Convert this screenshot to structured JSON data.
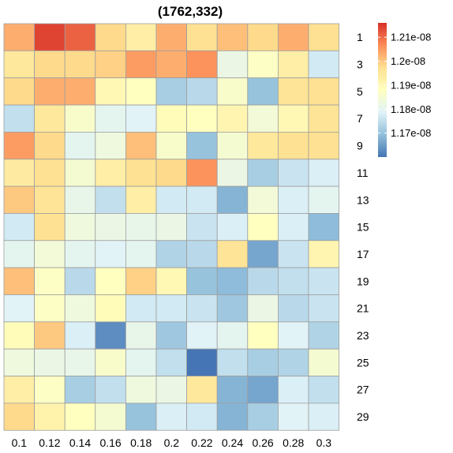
{
  "chart_data": {
    "type": "heatmap",
    "title": "(1762,332)",
    "x_labels": [
      "0.1",
      "0.12",
      "0.14",
      "0.16",
      "0.18",
      "0.2",
      "0.22",
      "0.24",
      "0.26",
      "0.28",
      "0.3"
    ],
    "y_labels": [
      "1",
      "",
      "3",
      "",
      "5",
      "",
      "7",
      "",
      "9",
      "",
      "11",
      "",
      "13",
      "",
      "15",
      "",
      "17",
      "",
      "19",
      "",
      "21",
      "",
      "23",
      "",
      "25",
      "",
      "27",
      "",
      "29"
    ],
    "y_tick_labels": [
      "1",
      "3",
      "5",
      "7",
      "9",
      "11",
      "13",
      "15",
      "17",
      "19",
      "21",
      "23",
      "25",
      "27",
      "29"
    ],
    "rows": [
      "1",
      "3",
      "5",
      "7",
      "9",
      "11",
      "13",
      "15",
      "17",
      "19",
      "21",
      "23",
      "25",
      "27",
      "29"
    ],
    "values": [
      [
        1.203e-08,
        1.214e-08,
        1.211e-08,
        1.198e-08,
        1.193e-08,
        1.203e-08,
        1.197e-08,
        1.201e-08,
        1.198e-08,
        1.203e-08,
        1.197e-08
      ],
      [
        1.195e-08,
        1.198e-08,
        1.198e-08,
        1.199e-08,
        1.205e-08,
        1.203e-08,
        1.206e-08,
        1.182e-08,
        1.187e-08,
        1.193e-08,
        1.177e-08
      ],
      [
        1.198e-08,
        1.203e-08,
        1.203e-08,
        1.19e-08,
        1.188e-08,
        1.172e-08,
        1.174e-08,
        1.186e-08,
        1.17e-08,
        1.196e-08,
        1.197e-08
      ],
      [
        1.175e-08,
        1.195e-08,
        1.186e-08,
        1.18e-08,
        1.179e-08,
        1.189e-08,
        1.188e-08,
        1.191e-08,
        1.184e-08,
        1.19e-08,
        1.196e-08
      ],
      [
        1.205e-08,
        1.198e-08,
        1.18e-08,
        1.183e-08,
        1.201e-08,
        1.186e-08,
        1.17e-08,
        1.185e-08,
        1.195e-08,
        1.197e-08,
        1.197e-08
      ],
      [
        1.194e-08,
        1.197e-08,
        1.185e-08,
        1.193e-08,
        1.197e-08,
        1.198e-08,
        1.206e-08,
        1.182e-08,
        1.172e-08,
        1.176e-08,
        1.178e-08
      ],
      [
        1.2e-08,
        1.196e-08,
        1.181e-08,
        1.175e-08,
        1.193e-08,
        1.177e-08,
        1.177e-08,
        1.168e-08,
        1.184e-08,
        1.178e-08,
        1.18e-08
      ],
      [
        1.177e-08,
        1.197e-08,
        1.183e-08,
        1.182e-08,
        1.181e-08,
        1.182e-08,
        1.176e-08,
        1.178e-08,
        1.188e-08,
        1.178e-08,
        1.169e-08
      ],
      [
        1.18e-08,
        1.184e-08,
        1.18e-08,
        1.179e-08,
        1.18e-08,
        1.173e-08,
        1.174e-08,
        1.196e-08,
        1.166e-08,
        1.176e-08,
        1.191e-08
      ],
      [
        1.201e-08,
        1.187e-08,
        1.174e-08,
        1.188e-08,
        1.199e-08,
        1.19e-08,
        1.17e-08,
        1.169e-08,
        1.174e-08,
        1.175e-08,
        1.176e-08
      ],
      [
        1.179e-08,
        1.187e-08,
        1.183e-08,
        1.189e-08,
        1.177e-08,
        1.177e-08,
        1.176e-08,
        1.171e-08,
        1.182e-08,
        1.174e-08,
        1.176e-08
      ],
      [
        1.189e-08,
        1.2e-08,
        1.178e-08,
        1.163e-08,
        1.181e-08,
        1.171e-08,
        1.179e-08,
        1.18e-08,
        1.188e-08,
        1.179e-08,
        1.173e-08
      ],
      [
        1.183e-08,
        1.182e-08,
        1.181e-08,
        1.186e-08,
        1.18e-08,
        1.175e-08,
        1.16e-08,
        1.175e-08,
        1.172e-08,
        1.173e-08,
        1.185e-08
      ],
      [
        1.193e-08,
        1.187e-08,
        1.172e-08,
        1.175e-08,
        1.183e-08,
        1.182e-08,
        1.195e-08,
        1.168e-08,
        1.166e-08,
        1.178e-08,
        1.175e-08
      ],
      [
        1.198e-08,
        1.192e-08,
        1.188e-08,
        1.185e-08,
        1.17e-08,
        1.178e-08,
        1.177e-08,
        1.168e-08,
        1.172e-08,
        1.179e-08,
        1.178e-08
      ]
    ],
    "color_scale": {
      "min": 1.16e-08,
      "max": 1.216e-08,
      "stops": [
        "#4575B4",
        "#91BFDB",
        "#E0F3F8",
        "#FFFFBF",
        "#FEE090",
        "#FC8D59",
        "#D73027"
      ]
    },
    "legend": {
      "position": "top-right",
      "ticks": [
        {
          "label": "1.21e-08",
          "value": 1.21e-08
        },
        {
          "label": "1.2e-08",
          "value": 1.2e-08
        },
        {
          "label": "1.19e-08",
          "value": 1.19e-08
        },
        {
          "label": "1.18e-08",
          "value": 1.18e-08
        },
        {
          "label": "1.17e-08",
          "value": 1.17e-08
        }
      ]
    },
    "grid": true
  }
}
